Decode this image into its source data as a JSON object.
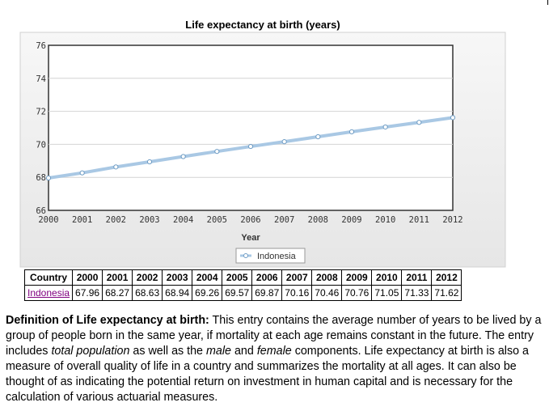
{
  "chart_data": {
    "type": "line",
    "title": "Life expectancy at birth (years)",
    "xlabel": "Year",
    "ylabel": "",
    "x": [
      2000,
      2001,
      2002,
      2003,
      2004,
      2005,
      2006,
      2007,
      2008,
      2009,
      2010,
      2011,
      2012
    ],
    "series": [
      {
        "name": "Indonesia",
        "values": [
          67.96,
          68.27,
          68.63,
          68.94,
          69.26,
          69.57,
          69.87,
          70.16,
          70.46,
          70.76,
          71.05,
          71.33,
          71.62
        ]
      }
    ],
    "ylim": [
      66,
      76
    ],
    "yticks": [
      66,
      68,
      70,
      72,
      74,
      76
    ],
    "grid": true,
    "legend": "bottom-center",
    "colors": {
      "line": "#a9c8e4",
      "line_dark": "#6e9cc4",
      "plot_bg": "#ffffff",
      "outer_bg": "#f0f0f0"
    }
  },
  "table": {
    "header": [
      "Country",
      "2000",
      "2001",
      "2002",
      "2003",
      "2004",
      "2005",
      "2006",
      "2007",
      "2008",
      "2009",
      "2010",
      "2011",
      "2012"
    ],
    "rows": [
      {
        "country": "Indonesia",
        "values": [
          "67.96",
          "68.27",
          "68.63",
          "68.94",
          "69.26",
          "69.57",
          "69.87",
          "70.16",
          "70.46",
          "70.76",
          "71.05",
          "71.33",
          "71.62"
        ]
      }
    ]
  },
  "definition": {
    "heading": "Definition of Life expectancy at birth:",
    "text_1": " This entry contains the average number of years to be lived by a group of people born in the same year, if mortality at each age remains constant in the future. The entry includes ",
    "em_1": "total population",
    "text_2": " as well as the ",
    "em_2": "male",
    "text_3": " and ",
    "em_3": "female",
    "text_4": " components. Life expectancy at birth is also a measure of overall quality of life in a country and summarizes the mortality at all ages. It can also be thought of as indicating the potential return on investment in human capital and is necessary for the calculation of various actuarial measures."
  }
}
